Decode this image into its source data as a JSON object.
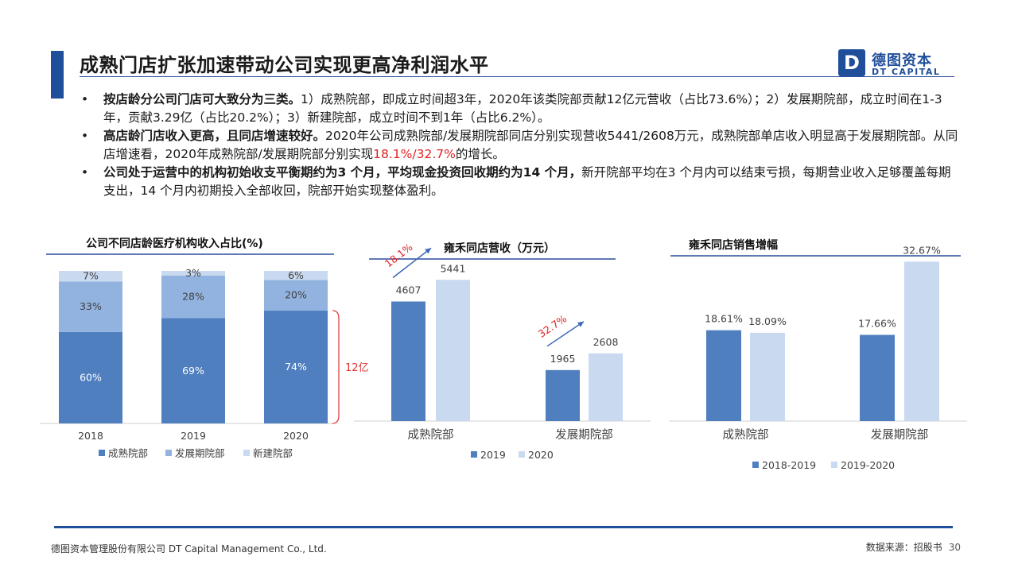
{
  "header": {
    "title": "成熟门店扩张加速带动公司实现更高净利润水平",
    "logo_mark": "D",
    "logo_cn": "德图资本",
    "logo_en": "DT CAPITAL"
  },
  "bullets": [
    {
      "bold": "按店龄分公司门店可大致分为三类。",
      "text": "1）成熟院部，即成立时间超3年，2020年该类院部贡献12亿元营收（占比73.6%）；2）发展期院部，成立时间在1-3 年，贡献3.29亿（占比20.2%）；3）新建院部，成立时间不到1年（占比6.2%）。"
    },
    {
      "bold": "高店龄门店收入更高，且同店增速较好。",
      "text": "2020年公司成熟院部/发展期院部同店分别实现营收5441/2608万元，成熟院部单店收入明显高于发展期院部。从同店增速看，2020年成熟院部/发展期院部分别实现",
      "highlight": "18.1%/32.7%",
      "text_after": "的增长。"
    },
    {
      "bold": "公司处于运营中的机构初始收支平衡期约为3 个月，平均现金投资回收期约为14 个月，",
      "text": "新开院部平均在3 个月内可以结束亏损，每期营业收入足够覆盖每期支出，14 个月内初期投入全部收回，院部开始实现整体盈利。"
    }
  ],
  "chart_data": [
    {
      "type": "bar",
      "stacked": true,
      "title": "公司不同店龄医疗机构收入占比(%)",
      "categories": [
        "2018",
        "2019",
        "2020"
      ],
      "series": [
        {
          "name": "成熟院部",
          "values": [
            60,
            69,
            74
          ],
          "labels": [
            "60%",
            "69%",
            "74%"
          ],
          "color": "#4f7fbf"
        },
        {
          "name": "发展期院部",
          "values": [
            33,
            28,
            20
          ],
          "labels": [
            "33%",
            "28%",
            "20%"
          ],
          "color": "#92b3e0"
        },
        {
          "name": "新建院部",
          "values": [
            7,
            3,
            6
          ],
          "labels": [
            "7%",
            "3%",
            "6%"
          ],
          "color": "#c9d9ef"
        }
      ],
      "ylim": [
        0,
        100
      ],
      "annotation": "12亿",
      "legend": "bottom"
    },
    {
      "type": "bar",
      "title": "雍禾同店营收（万元）",
      "categories": [
        "成熟院部",
        "发展期院部"
      ],
      "series": [
        {
          "name": "2019",
          "values": [
            4607,
            1965
          ],
          "color": "#4f7fbf"
        },
        {
          "name": "2020",
          "values": [
            5441,
            2608
          ],
          "color": "#c9d9ef"
        }
      ],
      "growth_labels": [
        "18.1%",
        "32.7%"
      ],
      "ylim": [
        0,
        6000
      ],
      "legend": "bottom"
    },
    {
      "type": "bar",
      "title": "雍禾同店销售增幅",
      "categories": [
        "成熟院部",
        "发展期院部"
      ],
      "series": [
        {
          "name": "2018-2019",
          "values": [
            18.61,
            17.66
          ],
          "labels": [
            "18.61%",
            "17.66%"
          ],
          "color": "#4f7fbf"
        },
        {
          "name": "2019-2020",
          "values": [
            18.09,
            32.67
          ],
          "labels": [
            "18.09%",
            "32.67%"
          ],
          "color": "#c9d9ef"
        }
      ],
      "ylim": [
        0,
        35
      ],
      "legend": "bottom"
    }
  ],
  "footer": {
    "company": "德图资本管理股份有限公司  DT Capital Management  Co., Ltd.",
    "source": "数据来源：招股书",
    "page": "30"
  }
}
